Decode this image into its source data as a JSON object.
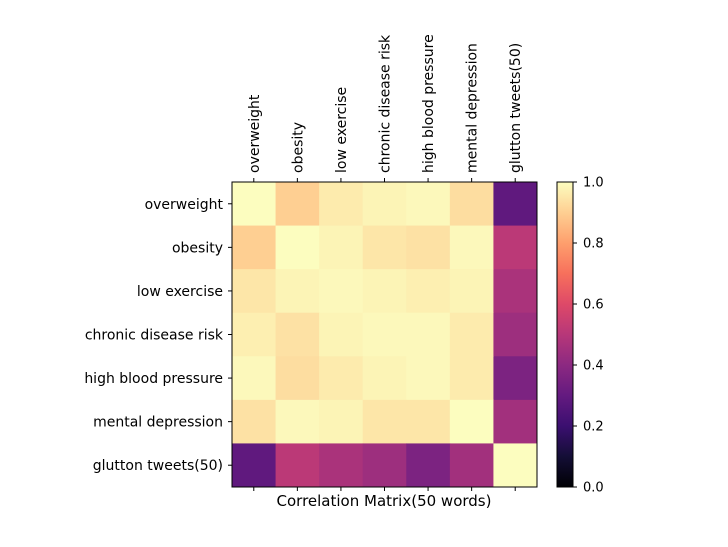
{
  "chart_data": {
    "type": "heatmap",
    "xlabel": "Correlation Matrix(50 words)",
    "labels": [
      "overweight",
      "obesity",
      "low exercise",
      "chronic disease risk",
      "high blood pressure",
      "mental depression",
      "glutton tweets(50)"
    ],
    "matrix": [
      [
        1.0,
        0.9,
        0.96,
        0.98,
        0.99,
        0.93,
        0.29
      ],
      [
        0.9,
        1.0,
        0.98,
        0.95,
        0.94,
        0.99,
        0.51
      ],
      [
        0.95,
        0.98,
        0.99,
        0.98,
        0.97,
        0.98,
        0.47
      ],
      [
        0.97,
        0.94,
        0.98,
        0.99,
        0.99,
        0.96,
        0.44
      ],
      [
        0.99,
        0.93,
        0.96,
        0.98,
        0.99,
        0.96,
        0.36
      ],
      [
        0.94,
        0.99,
        0.98,
        0.95,
        0.95,
        1.0,
        0.45
      ],
      [
        0.29,
        0.51,
        0.47,
        0.44,
        0.36,
        0.45,
        1.0
      ]
    ],
    "colorbar": {
      "vmin": 0.0,
      "vmax": 1.0,
      "ticks": [
        "0.0",
        "0.2",
        "0.4",
        "0.6",
        "0.8",
        "1.0"
      ],
      "colormap": "magma"
    },
    "grid": false,
    "xtick_position": "top"
  }
}
